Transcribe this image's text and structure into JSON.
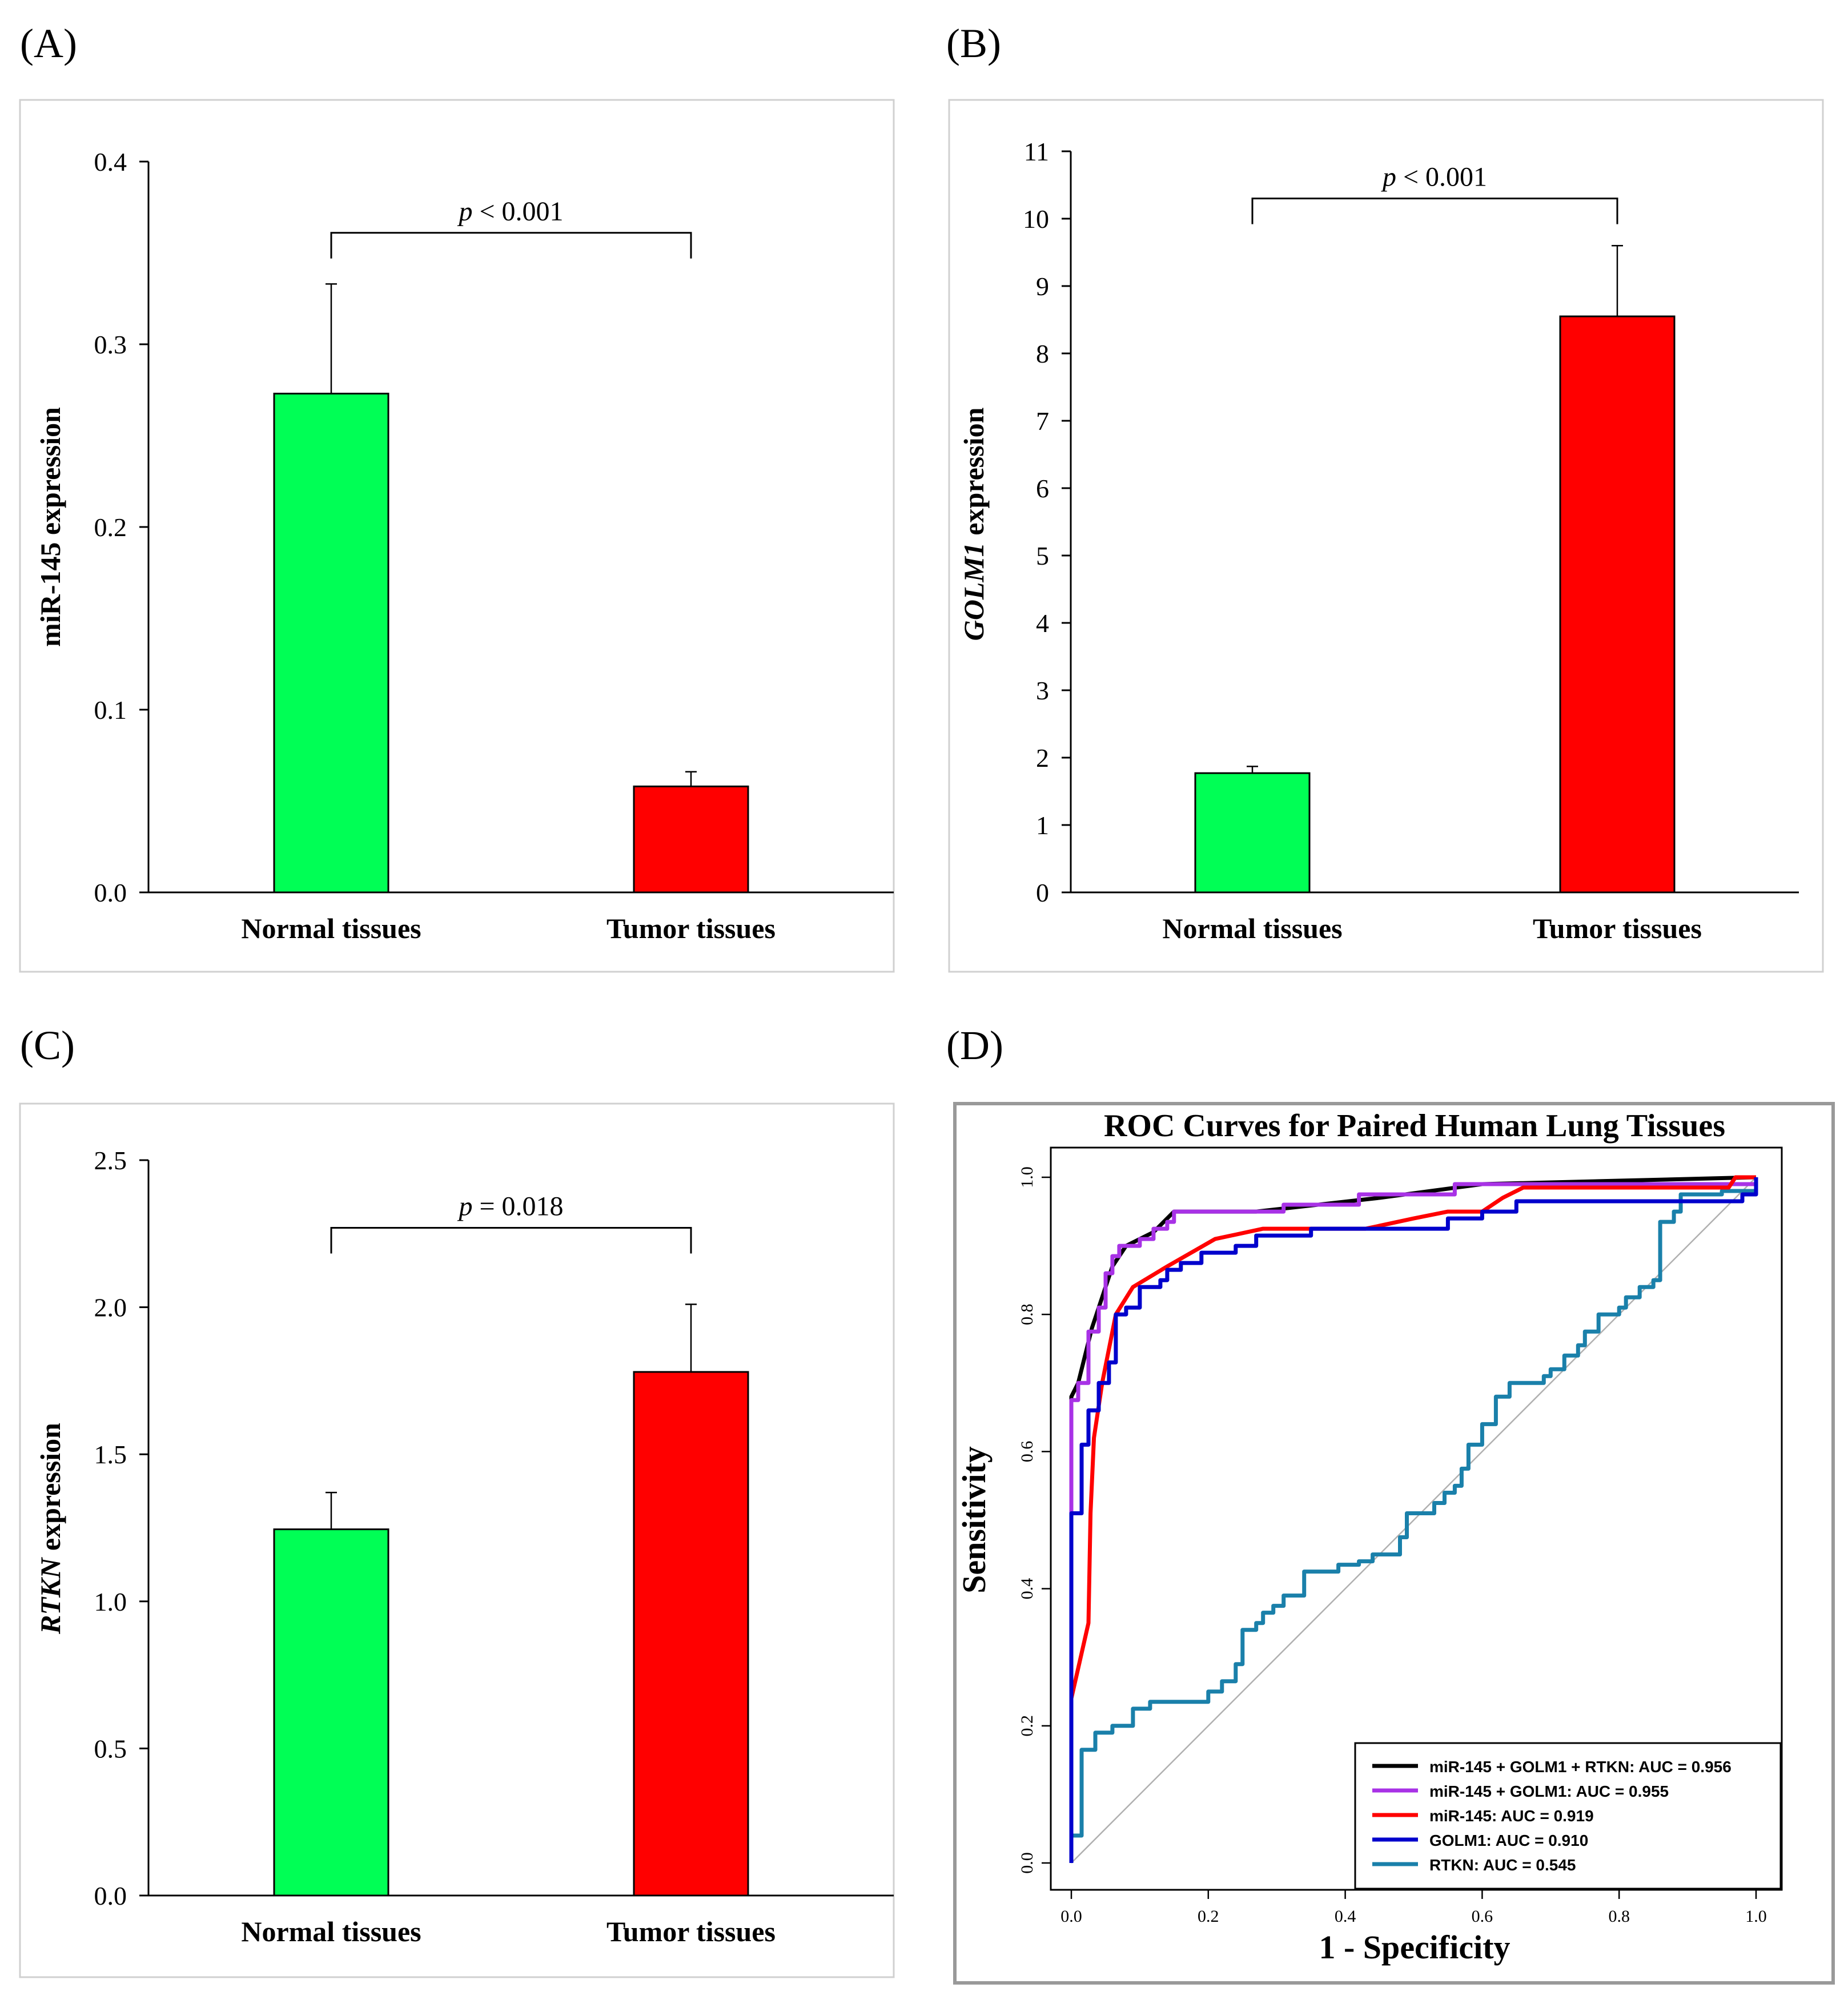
{
  "colors": {
    "green": "#00ff55",
    "red": "#ff0000",
    "purple": "#a832e6",
    "blue": "#0000cc",
    "teal": "#1a80aa",
    "black": "#000000",
    "diag": "#b0b0b0"
  },
  "chart_data": [
    {
      "panel_label": "(A)",
      "type": "bar",
      "categories": [
        "Normal tissues",
        "Tumor tissues"
      ],
      "values": [
        0.273,
        0.058
      ],
      "errors": [
        0.06,
        0.008
      ],
      "bar_colors": [
        "green",
        "red"
      ],
      "ylabel": "miR-145 expression",
      "ylabel_italic": false,
      "ylim": [
        0,
        0.4
      ],
      "yticks": [
        0.0,
        0.1,
        0.2,
        0.3,
        0.4
      ],
      "ytick_labels": [
        "0.0",
        "0.1",
        "0.2",
        "0.3",
        "0.4"
      ],
      "bracket_y": 0.361,
      "annotation": {
        "p": "p",
        "rest": " < 0.001"
      }
    },
    {
      "panel_label": "(B)",
      "type": "bar",
      "categories": [
        "Normal tissues",
        "Tumor tissues"
      ],
      "values": [
        1.77,
        8.55
      ],
      "errors": [
        0.1,
        1.05
      ],
      "bar_colors": [
        "green",
        "red"
      ],
      "ylabel": "GOLM1 expression",
      "ylabel_italic": true,
      "ylabel_italic_part": "GOLM1",
      "ylabel_rest": " expression",
      "ylim": [
        0,
        11
      ],
      "yticks": [
        0,
        1,
        2,
        3,
        4,
        5,
        6,
        7,
        8,
        9,
        10,
        11
      ],
      "ytick_labels": [
        "0",
        "1",
        "2",
        "3",
        "4",
        "5",
        "6",
        "7",
        "8",
        "9",
        "10",
        "11"
      ],
      "bracket_y": 10.3,
      "annotation": {
        "p": "p",
        "rest": " < 0.001"
      }
    },
    {
      "panel_label": "(C)",
      "type": "bar",
      "categories": [
        "Normal tissues",
        "Tumor tissues"
      ],
      "values": [
        1.245,
        1.78
      ],
      "errors": [
        0.125,
        0.23
      ],
      "bar_colors": [
        "green",
        "red"
      ],
      "ylabel": "RTKN expression",
      "ylabel_italic": true,
      "ylabel_italic_part": "RTKN",
      "ylabel_rest": " expression",
      "ylim": [
        0,
        2.5
      ],
      "yticks": [
        0.0,
        0.5,
        1.0,
        1.5,
        2.0,
        2.5
      ],
      "ytick_labels": [
        "0.0",
        "0.5",
        "1.0",
        "1.5",
        "2.0",
        "2.5"
      ],
      "bracket_y": 2.27,
      "annotation": {
        "p": "p",
        "rest": " = 0.018"
      }
    },
    {
      "panel_label": "(D)",
      "type": "line",
      "title": "ROC Curves for Paired Human Lung Tissues",
      "xlabel": "1 - Specificity",
      "ylabel": "Sensitivity",
      "xlim": [
        0,
        1
      ],
      "ylim": [
        0,
        1
      ],
      "xticks": [
        0.0,
        0.2,
        0.4,
        0.6,
        0.8,
        1.0
      ],
      "xtick_labels": [
        "0.0",
        "0.2",
        "0.4",
        "0.6",
        "0.8",
        "1.0"
      ],
      "yticks": [
        0.0,
        0.2,
        0.4,
        0.6,
        0.8,
        1.0
      ],
      "ytick_labels": [
        "0.0",
        "0.2",
        "0.4",
        "0.6",
        "0.8",
        "1.0"
      ],
      "legend_position": "bottom-right",
      "series": [
        {
          "name": "miR-145 + GOLM1 + RTKN: AUC = 0.956",
          "color": "black",
          "points": [
            [
              0,
              0
            ],
            [
              0,
              0.68
            ],
            [
              0.01,
              0.7
            ],
            [
              0.03,
              0.78
            ],
            [
              0.04,
              0.81
            ],
            [
              0.06,
              0.87
            ],
            [
              0.08,
              0.9
            ],
            [
              0.12,
              0.92
            ],
            [
              0.15,
              0.95
            ],
            [
              0.27,
              0.95
            ],
            [
              0.45,
              0.97
            ],
            [
              0.6,
              0.99
            ],
            [
              1,
              1
            ]
          ]
        },
        {
          "name": "miR-145 + GOLM1: AUC = 0.955",
          "color": "purple",
          "points": [
            [
              0,
              0
            ],
            [
              0,
              0.675
            ],
            [
              0.01,
              0.675
            ],
            [
              0.01,
              0.7
            ],
            [
              0.025,
              0.7
            ],
            [
              0.025,
              0.775
            ],
            [
              0.04,
              0.775
            ],
            [
              0.04,
              0.81
            ],
            [
              0.05,
              0.81
            ],
            [
              0.05,
              0.86
            ],
            [
              0.06,
              0.86
            ],
            [
              0.06,
              0.885
            ],
            [
              0.07,
              0.885
            ],
            [
              0.07,
              0.9
            ],
            [
              0.1,
              0.9
            ],
            [
              0.1,
              0.91
            ],
            [
              0.12,
              0.91
            ],
            [
              0.12,
              0.925
            ],
            [
              0.14,
              0.925
            ],
            [
              0.14,
              0.935
            ],
            [
              0.15,
              0.935
            ],
            [
              0.15,
              0.95
            ],
            [
              0.31,
              0.95
            ],
            [
              0.31,
              0.96
            ],
            [
              0.42,
              0.96
            ],
            [
              0.42,
              0.975
            ],
            [
              0.56,
              0.975
            ],
            [
              0.56,
              0.99
            ],
            [
              1,
              0.99
            ],
            [
              1,
              1
            ]
          ]
        },
        {
          "name": "miR-145: AUC = 0.919",
          "color": "red",
          "points": [
            [
              0,
              0.24
            ],
            [
              0.025,
              0.35
            ],
            [
              0.028,
              0.51
            ],
            [
              0.033,
              0.62
            ],
            [
              0.045,
              0.7
            ],
            [
              0.065,
              0.8
            ],
            [
              0.09,
              0.84
            ],
            [
              0.14,
              0.87
            ],
            [
              0.21,
              0.91
            ],
            [
              0.28,
              0.925
            ],
            [
              0.43,
              0.925
            ],
            [
              0.5,
              0.94
            ],
            [
              0.55,
              0.95
            ],
            [
              0.6,
              0.95
            ],
            [
              0.63,
              0.97
            ],
            [
              0.66,
              0.985
            ],
            [
              0.96,
              0.985
            ],
            [
              0.97,
              1
            ],
            [
              1,
              1
            ]
          ]
        },
        {
          "name": "GOLM1: AUC = 0.910",
          "color": "blue",
          "points": [
            [
              0,
              0
            ],
            [
              0,
              0.51
            ],
            [
              0.015,
              0.51
            ],
            [
              0.015,
              0.61
            ],
            [
              0.025,
              0.61
            ],
            [
              0.025,
              0.66
            ],
            [
              0.04,
              0.66
            ],
            [
              0.04,
              0.7
            ],
            [
              0.055,
              0.7
            ],
            [
              0.055,
              0.73
            ],
            [
              0.065,
              0.73
            ],
            [
              0.065,
              0.8
            ],
            [
              0.08,
              0.8
            ],
            [
              0.08,
              0.81
            ],
            [
              0.1,
              0.81
            ],
            [
              0.1,
              0.84
            ],
            [
              0.13,
              0.84
            ],
            [
              0.13,
              0.85
            ],
            [
              0.14,
              0.85
            ],
            [
              0.14,
              0.865
            ],
            [
              0.16,
              0.865
            ],
            [
              0.16,
              0.875
            ],
            [
              0.19,
              0.875
            ],
            [
              0.19,
              0.89
            ],
            [
              0.24,
              0.89
            ],
            [
              0.24,
              0.9
            ],
            [
              0.27,
              0.9
            ],
            [
              0.27,
              0.915
            ],
            [
              0.35,
              0.915
            ],
            [
              0.35,
              0.925
            ],
            [
              0.55,
              0.925
            ],
            [
              0.55,
              0.94
            ],
            [
              0.6,
              0.94
            ],
            [
              0.6,
              0.95
            ],
            [
              0.65,
              0.95
            ],
            [
              0.65,
              0.965
            ],
            [
              0.98,
              0.965
            ],
            [
              0.98,
              0.975
            ],
            [
              1,
              0.975
            ],
            [
              1,
              1
            ]
          ]
        },
        {
          "name": "RTKN: AUC = 0.545",
          "color": "teal",
          "points": [
            [
              0,
              0
            ],
            [
              0,
              0.04
            ],
            [
              0.015,
              0.04
            ],
            [
              0.015,
              0.165
            ],
            [
              0.035,
              0.165
            ],
            [
              0.035,
              0.19
            ],
            [
              0.06,
              0.19
            ],
            [
              0.06,
              0.2
            ],
            [
              0.09,
              0.2
            ],
            [
              0.09,
              0.225
            ],
            [
              0.115,
              0.225
            ],
            [
              0.115,
              0.235
            ],
            [
              0.2,
              0.235
            ],
            [
              0.2,
              0.25
            ],
            [
              0.22,
              0.25
            ],
            [
              0.22,
              0.265
            ],
            [
              0.24,
              0.265
            ],
            [
              0.24,
              0.29
            ],
            [
              0.25,
              0.29
            ],
            [
              0.25,
              0.34
            ],
            [
              0.27,
              0.34
            ],
            [
              0.27,
              0.35
            ],
            [
              0.28,
              0.35
            ],
            [
              0.28,
              0.365
            ],
            [
              0.295,
              0.365
            ],
            [
              0.295,
              0.375
            ],
            [
              0.31,
              0.375
            ],
            [
              0.31,
              0.39
            ],
            [
              0.34,
              0.39
            ],
            [
              0.34,
              0.425
            ],
            [
              0.39,
              0.425
            ],
            [
              0.39,
              0.435
            ],
            [
              0.42,
              0.435
            ],
            [
              0.42,
              0.44
            ],
            [
              0.44,
              0.44
            ],
            [
              0.44,
              0.45
            ],
            [
              0.48,
              0.45
            ],
            [
              0.48,
              0.475
            ],
            [
              0.49,
              0.475
            ],
            [
              0.49,
              0.51
            ],
            [
              0.53,
              0.51
            ],
            [
              0.53,
              0.525
            ],
            [
              0.545,
              0.525
            ],
            [
              0.545,
              0.54
            ],
            [
              0.56,
              0.54
            ],
            [
              0.56,
              0.55
            ],
            [
              0.57,
              0.55
            ],
            [
              0.57,
              0.575
            ],
            [
              0.58,
              0.575
            ],
            [
              0.58,
              0.61
            ],
            [
              0.6,
              0.61
            ],
            [
              0.6,
              0.64
            ],
            [
              0.62,
              0.64
            ],
            [
              0.62,
              0.68
            ],
            [
              0.64,
              0.68
            ],
            [
              0.64,
              0.7
            ],
            [
              0.69,
              0.7
            ],
            [
              0.69,
              0.71
            ],
            [
              0.7,
              0.71
            ],
            [
              0.7,
              0.72
            ],
            [
              0.72,
              0.72
            ],
            [
              0.72,
              0.74
            ],
            [
              0.74,
              0.74
            ],
            [
              0.74,
              0.755
            ],
            [
              0.75,
              0.755
            ],
            [
              0.75,
              0.775
            ],
            [
              0.77,
              0.775
            ],
            [
              0.77,
              0.8
            ],
            [
              0.8,
              0.8
            ],
            [
              0.8,
              0.81
            ],
            [
              0.81,
              0.81
            ],
            [
              0.81,
              0.825
            ],
            [
              0.83,
              0.825
            ],
            [
              0.83,
              0.84
            ],
            [
              0.85,
              0.84
            ],
            [
              0.85,
              0.85
            ],
            [
              0.86,
              0.85
            ],
            [
              0.86,
              0.935
            ],
            [
              0.88,
              0.935
            ],
            [
              0.88,
              0.95
            ],
            [
              0.89,
              0.95
            ],
            [
              0.89,
              0.975
            ],
            [
              0.95,
              0.975
            ],
            [
              0.95,
              0.98
            ],
            [
              1,
              0.98
            ],
            [
              1,
              1
            ]
          ]
        },
        {
          "name": "",
          "color": "diag",
          "points": [
            [
              0,
              0
            ],
            [
              1,
              1
            ]
          ],
          "diagonal": true
        }
      ]
    }
  ]
}
